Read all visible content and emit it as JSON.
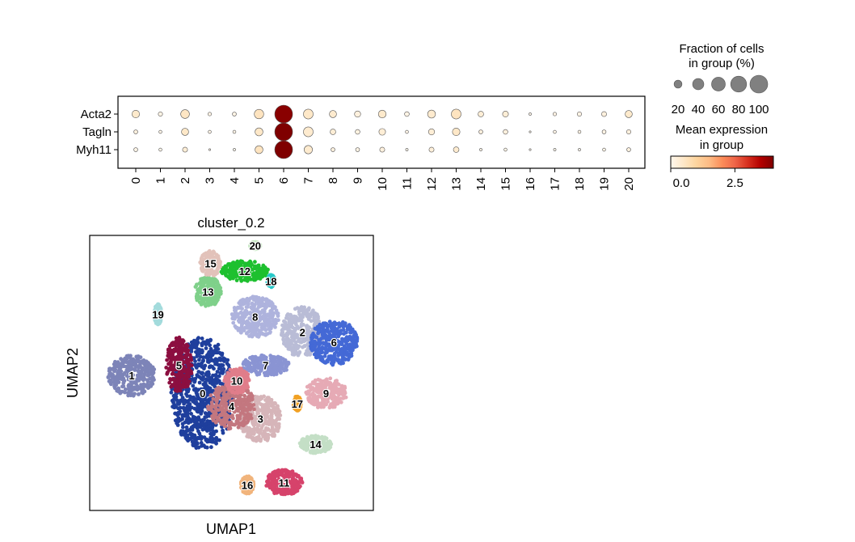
{
  "chart_data": [
    {
      "type": "dotplot",
      "genes": [
        "Acta2",
        "Tagln",
        "Myh11"
      ],
      "groups": [
        "0",
        "1",
        "2",
        "3",
        "4",
        "5",
        "6",
        "7",
        "8",
        "9",
        "10",
        "11",
        "12",
        "13",
        "14",
        "15",
        "16",
        "17",
        "18",
        "19",
        "20"
      ],
      "fraction_pct": [
        [
          18,
          6,
          24,
          4,
          5,
          28,
          100,
          30,
          16,
          12,
          19,
          7,
          20,
          30,
          10,
          11,
          2,
          4,
          6,
          8,
          16
        ],
        [
          5,
          3,
          16,
          3,
          3,
          20,
          100,
          30,
          10,
          7,
          14,
          3,
          12,
          18,
          5,
          7,
          1,
          3,
          3,
          5,
          6
        ],
        [
          5,
          3,
          8,
          1,
          2,
          20,
          100,
          22,
          5,
          5,
          8,
          2,
          8,
          10,
          2,
          3,
          1,
          2,
          2,
          3,
          5
        ]
      ],
      "mean_expression": [
        [
          0.45,
          0.1,
          0.55,
          0.08,
          0.1,
          0.6,
          3.9,
          0.5,
          0.4,
          0.2,
          0.45,
          0.1,
          0.4,
          0.6,
          0.3,
          0.3,
          0.05,
          0.1,
          0.1,
          0.2,
          0.45
        ],
        [
          0.2,
          0.05,
          0.5,
          0.05,
          0.05,
          0.5,
          4.0,
          0.4,
          0.3,
          0.15,
          0.3,
          0.05,
          0.3,
          0.5,
          0.2,
          0.2,
          0.05,
          0.05,
          0.1,
          0.1,
          0.2
        ],
        [
          0.1,
          0.05,
          0.3,
          0.05,
          0.05,
          0.6,
          4.0,
          0.4,
          0.2,
          0.1,
          0.2,
          0.05,
          0.25,
          0.4,
          0.1,
          0.1,
          0.05,
          0.05,
          0.05,
          0.1,
          0.2
        ]
      ],
      "size_legend": {
        "title": "Fraction of cells\nin group (%)",
        "values": [
          20,
          40,
          60,
          80,
          100
        ]
      },
      "color_legend": {
        "title": "Mean expression\nin group",
        "colormap": "OrRd",
        "range": [
          0,
          4
        ],
        "ticks": [
          0.0,
          2.5
        ],
        "tick_labels": [
          "0.0",
          "2.5"
        ]
      }
    },
    {
      "type": "scatter",
      "title": "cluster_0.2",
      "xlabel": "UMAP1",
      "ylabel": "UMAP2",
      "xlim": [
        0,
        10
      ],
      "ylim": [
        0,
        10
      ],
      "clusters": [
        {
          "id": "0",
          "color": "#1f3f9d",
          "cx": 3.9,
          "cy": 4.2,
          "rx": 1.2,
          "ry": 2.2
        },
        {
          "id": "1",
          "color": "#7d84b8",
          "cx": 1.2,
          "cy": 4.9,
          "rx": 0.9,
          "ry": 0.8
        },
        {
          "id": "2",
          "color": "#b9bcd6",
          "cx": 7.7,
          "cy": 6.6,
          "rx": 0.8,
          "ry": 1.0
        },
        {
          "id": "3",
          "color": "#d6b5b9",
          "cx": 6.1,
          "cy": 3.2,
          "rx": 0.8,
          "ry": 0.9
        },
        {
          "id": "4",
          "color": "#c3777f",
          "cx": 5.0,
          "cy": 3.7,
          "rx": 0.9,
          "ry": 0.9
        },
        {
          "id": "5",
          "color": "#8c0f40",
          "cx": 3.0,
          "cy": 5.3,
          "rx": 0.5,
          "ry": 1.1
        },
        {
          "id": "6",
          "color": "#4469d6",
          "cx": 8.9,
          "cy": 6.2,
          "rx": 0.9,
          "ry": 0.9
        },
        {
          "id": "7",
          "color": "#8a94d3",
          "cx": 6.3,
          "cy": 5.3,
          "rx": 0.9,
          "ry": 0.4
        },
        {
          "id": "8",
          "color": "#aeb3dd",
          "cx": 5.9,
          "cy": 7.2,
          "rx": 0.9,
          "ry": 0.8
        },
        {
          "id": "9",
          "color": "#e6aab5",
          "cx": 8.6,
          "cy": 4.2,
          "rx": 0.8,
          "ry": 0.6
        },
        {
          "id": "10",
          "color": "#e07d8a",
          "cx": 5.2,
          "cy": 4.7,
          "rx": 0.5,
          "ry": 0.5
        },
        {
          "id": "11",
          "color": "#d6436b",
          "cx": 7.0,
          "cy": 0.7,
          "rx": 0.7,
          "ry": 0.5
        },
        {
          "id": "12",
          "color": "#1ec02f",
          "cx": 5.5,
          "cy": 9.0,
          "rx": 0.9,
          "ry": 0.4
        },
        {
          "id": "13",
          "color": "#7fd08a",
          "cx": 4.1,
          "cy": 8.2,
          "rx": 0.5,
          "ry": 0.6
        },
        {
          "id": "14",
          "color": "#c4dfc6",
          "cx": 8.2,
          "cy": 2.2,
          "rx": 0.6,
          "ry": 0.35
        },
        {
          "id": "15",
          "color": "#e2c2ba",
          "cx": 4.2,
          "cy": 9.3,
          "rx": 0.4,
          "ry": 0.5
        },
        {
          "id": "16",
          "color": "#f1b47c",
          "cx": 5.6,
          "cy": 0.6,
          "rx": 0.25,
          "ry": 0.35
        },
        {
          "id": "17",
          "color": "#f1a124",
          "cx": 7.5,
          "cy": 3.8,
          "rx": 0.15,
          "ry": 0.3
        },
        {
          "id": "18",
          "color": "#28c9c9",
          "cx": 6.5,
          "cy": 8.6,
          "rx": 0.15,
          "ry": 0.25
        },
        {
          "id": "19",
          "color": "#a3dbdc",
          "cx": 2.2,
          "cy": 7.3,
          "rx": 0.15,
          "ry": 0.4
        },
        {
          "id": "20",
          "color": "#c8e8c4",
          "cx": 5.9,
          "cy": 10.0,
          "rx": 0.2,
          "ry": 0.15
        }
      ]
    }
  ]
}
